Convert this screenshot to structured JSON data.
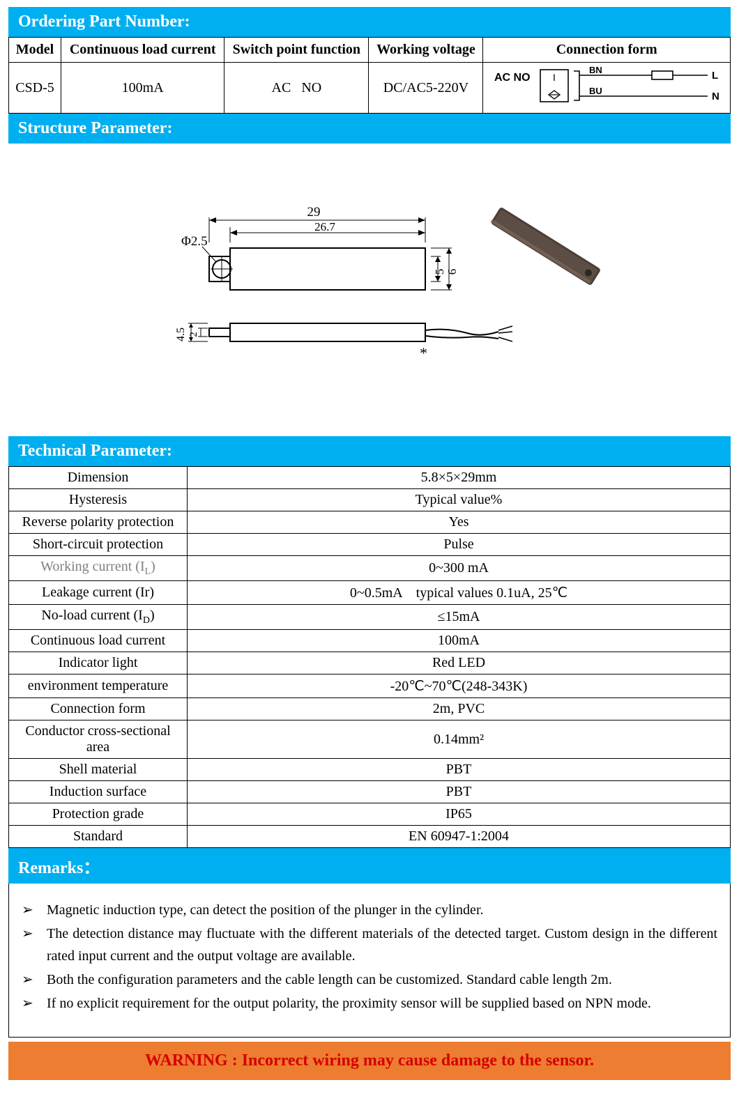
{
  "colors": {
    "header_bg": "#00afef",
    "header_text": "#ffffff",
    "border": "#000000",
    "warning_bg": "#ed7d31",
    "warning_text": "#d50000",
    "gray": "#7f7f7f",
    "diagram_stroke": "#000000",
    "photo_body": "#4a3f38",
    "photo_highlight": "#8a7466"
  },
  "sections": {
    "ordering": "Ordering Part Number:",
    "structure": "Structure Parameter:",
    "technical": "Technical Parameter:",
    "remarks": "Remarks："
  },
  "order_table": {
    "headers": [
      "Model",
      "Continuous load current",
      "Switch point function",
      "Working voltage",
      "Connection form"
    ],
    "row": {
      "model": "CSD-5",
      "continuous_load_current": "100mA",
      "switch_point_function": "AC   NO",
      "working_voltage": "DC/AC5-220V",
      "connection": {
        "label": "AC NO",
        "wires": [
          {
            "tag": "BN",
            "end": "L",
            "has_box": true
          },
          {
            "tag": "BU",
            "end": "N",
            "has_box": false
          }
        ]
      }
    }
  },
  "structure_diagram": {
    "hole_dia_label": "Φ2.5",
    "total_length": "29",
    "inner_length": "26.7",
    "width_outer": "6",
    "width_inner": "5",
    "side_h1": "4.5",
    "side_h2": "2",
    "asterisk": "*"
  },
  "tech_params": [
    {
      "name": "Dimension",
      "value": "5.8×5×29mm"
    },
    {
      "name": "Hysteresis",
      "value": "Typical value%"
    },
    {
      "name": "Reverse polarity protection",
      "value": "Yes"
    },
    {
      "name": "Short-circuit protection",
      "value": "Pulse"
    },
    {
      "name_html": "Working current (I<span class='sub'>L</span>)",
      "value": "0~300 mA",
      "gray": true
    },
    {
      "name": "Leakage current (Ir)",
      "value": "0~0.5mA    typical values 0.1uA, 25℃"
    },
    {
      "name_html": "No-load current (I<span class='sub'>D</span>)",
      "value": "≤15mA"
    },
    {
      "name": "Continuous load current",
      "value": "100mA"
    },
    {
      "name": "Indicator light",
      "value": "Red LED"
    },
    {
      "name": "environment temperature",
      "value": "-20℃~70℃(248-343K)"
    },
    {
      "name": "Connection form",
      "value": "2m, PVC"
    },
    {
      "name": "Conductor cross-sectional area",
      "value": "0.14mm²"
    },
    {
      "name": "Shell material",
      "value": "PBT"
    },
    {
      "name": "Induction surface",
      "value": "PBT"
    },
    {
      "name": "Protection grade",
      "value": "IP65"
    },
    {
      "name": "Standard",
      "value": "EN 60947-1:2004"
    }
  ],
  "remarks": [
    "Magnetic induction type, can detect the position of the plunger in the cylinder.",
    "The detection distance may fluctuate with the different materials of the detected target. Custom design in the different rated input current and the output voltage are available.",
    "Both the configuration parameters and the cable length can be customized. Standard cable length 2m.",
    "If no explicit requirement for the output polarity, the proximity sensor will be supplied based on NPN mode."
  ],
  "warning": "WARNING : Incorrect wiring may cause damage to the sensor."
}
